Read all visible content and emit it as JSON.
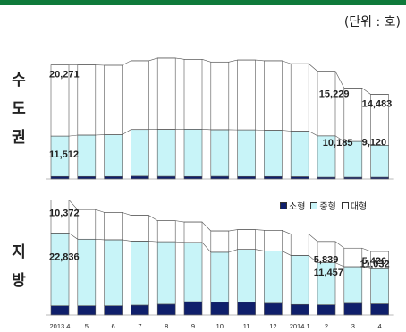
{
  "unit_label": "(단위 : 호)",
  "regions": [
    "수\n도\n권",
    "지\n방"
  ],
  "legend": [
    {
      "label": "소형",
      "color": "#0f1f6b"
    },
    {
      "label": "중형",
      "color": "#c8f4f8"
    },
    {
      "label": "대형",
      "color": "#ffffff"
    }
  ],
  "chart_data": [
    {
      "type": "bar",
      "stacked": true,
      "region": "수도권",
      "categories": [
        "2013.4",
        "5",
        "6",
        "7",
        "8",
        "9",
        "10",
        "11",
        "12",
        "2014.1",
        "2",
        "3",
        "4"
      ],
      "series": [
        {
          "name": "소형",
          "values": [
            700,
            700,
            700,
            800,
            750,
            700,
            750,
            700,
            700,
            650,
            500,
            500,
            500
          ]
        },
        {
          "name": "중형",
          "values": [
            11512,
            11800,
            11900,
            13300,
            13400,
            13500,
            13300,
            13300,
            13200,
            13000,
            11800,
            10185,
            9120
          ]
        },
        {
          "name": "대형",
          "values": [
            20271,
            20000,
            19800,
            19600,
            20300,
            19900,
            19300,
            19900,
            19800,
            19200,
            18400,
            15229,
            14483
          ]
        }
      ],
      "data_labels": [
        {
          "text": "20,271",
          "cat": 0,
          "series": 2
        },
        {
          "text": "11,512",
          "cat": 0,
          "series": 1
        },
        {
          "text": "15,229",
          "cat": 11,
          "series": 2
        },
        {
          "text": "14,483",
          "cat": 12,
          "series": 2
        },
        {
          "text": "10,185",
          "cat": 11,
          "series": 1
        },
        {
          "text": "9,120",
          "cat": 12,
          "series": 1
        }
      ]
    },
    {
      "type": "bar",
      "stacked": true,
      "region": "지방",
      "categories": [
        "2013.4",
        "5",
        "6",
        "7",
        "8",
        "9",
        "10",
        "11",
        "12",
        "2014.1",
        "2",
        "3",
        "4"
      ],
      "series": [
        {
          "name": "소형",
          "values": [
            2900,
            2900,
            2900,
            3100,
            3400,
            4200,
            4000,
            4000,
            3700,
            3300,
            3200,
            3700,
            3500
          ]
        },
        {
          "name": "중형",
          "values": [
            22836,
            20900,
            20700,
            20100,
            19600,
            18600,
            15700,
            16600,
            16400,
            15400,
            13200,
            11457,
            11032
          ]
        },
        {
          "name": "대형",
          "values": [
            10372,
            9300,
            8600,
            8100,
            6600,
            6400,
            6700,
            6200,
            6500,
            6700,
            6700,
            5839,
            5426
          ]
        }
      ],
      "data_labels": [
        {
          "text": "10,372",
          "cat": 0,
          "series": 2
        },
        {
          "text": "22,836",
          "cat": 0,
          "series": 1
        },
        {
          "text": "5,839",
          "cat": 11,
          "series": 2
        },
        {
          "text": "5,426",
          "cat": 12,
          "series": 2
        },
        {
          "text": "11,457",
          "cat": 11,
          "series": 1
        },
        {
          "text": "11,032",
          "cat": 12,
          "series": 1
        }
      ]
    }
  ]
}
